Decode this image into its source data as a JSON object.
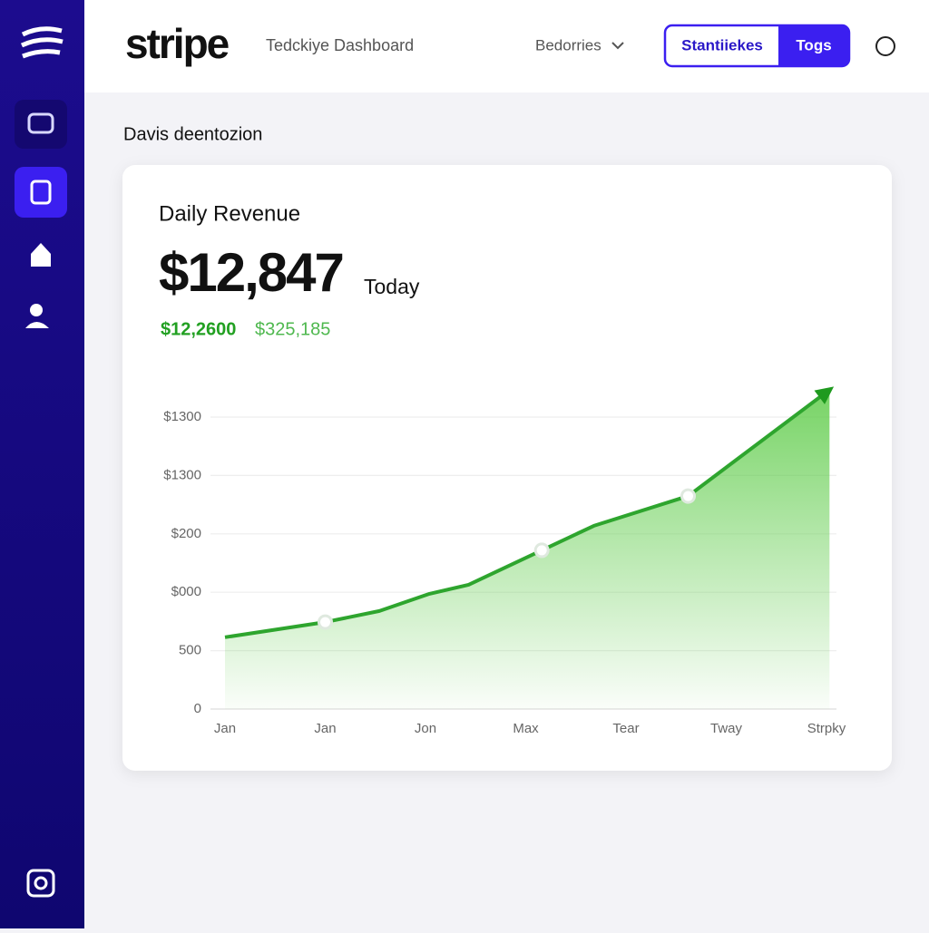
{
  "header": {
    "logo": "stripe",
    "title": "Tedckiye Dashboard",
    "menu": "Bedorries",
    "tabs": [
      "Stantiiekes",
      "Togs"
    ]
  },
  "section_title": "Davis deentozion",
  "card": {
    "title": "Daily Revenue",
    "amount": "$12,847",
    "amount_note": "Today",
    "sub_values": [
      "$12,2600",
      "$325,185"
    ]
  },
  "chart": {
    "type": "area",
    "color": "#2ea52e",
    "categories": [
      "Jan",
      "Jan",
      "Jon",
      "Max",
      "Tear",
      "Tway",
      "Strpky"
    ],
    "y_axis_labels": [
      "0",
      "500",
      "$000",
      "$200",
      "$1300",
      "$1300"
    ],
    "xlim": [
      0,
      6
    ],
    "ylim": [
      0,
      5.5
    ],
    "x": [
      0,
      1,
      1.54,
      2.03,
      2.43,
      3.16,
      3.68,
      4.62,
      6.03
    ],
    "values": [
      1.23,
      1.49,
      1.68,
      1.97,
      2.13,
      2.72,
      3.14,
      3.65,
      5.47
    ],
    "markers": [
      1,
      5,
      7
    ]
  }
}
